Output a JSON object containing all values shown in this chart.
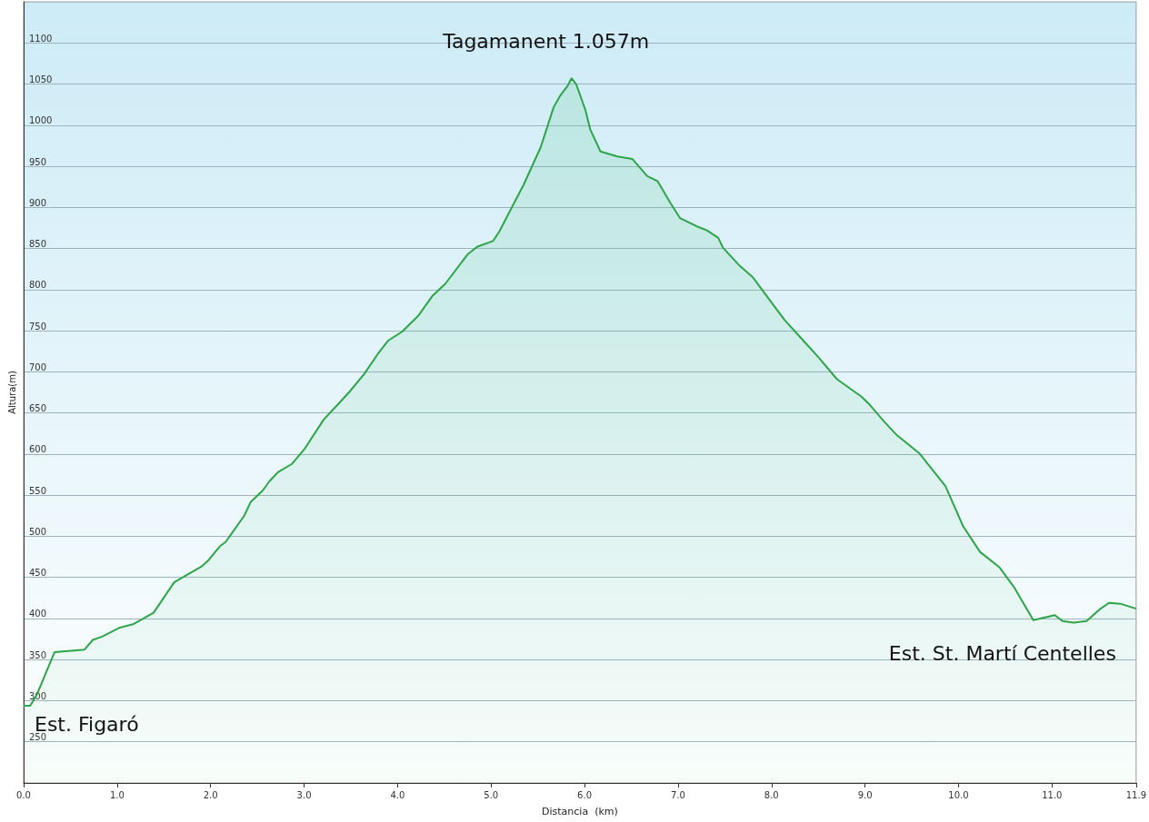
{
  "chart_data": {
    "type": "area",
    "xlabel": "Distancia  (km)",
    "ylabel": "Altura(m)",
    "x": [
      0,
      0.07,
      0.14,
      0.33,
      0.65,
      0.74,
      0.84,
      1.03,
      1.17,
      1.39,
      1.61,
      1.76,
      1.9,
      1.97,
      2.1,
      2.16,
      2.36,
      2.43,
      2.56,
      2.63,
      2.72,
      2.87,
      3.01,
      3.21,
      3.35,
      3.48,
      3.64,
      3.79,
      3.9,
      4.05,
      4.22,
      4.32,
      4.37,
      4.51,
      4.75,
      4.85,
      5.02,
      5.09,
      5.24,
      5.35,
      5.53,
      5.67,
      5.74,
      5.82,
      5.86,
      5.91,
      6.01,
      6.06,
      6.17,
      6.35,
      6.51,
      6.67,
      6.78,
      6.92,
      7.02,
      7.22,
      7.31,
      7.43,
      7.48,
      7.65,
      7.8,
      7.89,
      8.14,
      8.38,
      8.5,
      8.7,
      8.96,
      9.05,
      9.2,
      9.34,
      9.58,
      9.86,
      10.05,
      10.23,
      10.44,
      10.6,
      10.8,
      11.03,
      11.11,
      11.23,
      11.37,
      11.52,
      11.61,
      11.73,
      11.9
    ],
    "series": [
      {
        "color": "#2ea44a",
        "values": [
          294,
          294,
          307,
          359,
          362,
          374,
          378,
          389,
          393,
          407,
          444,
          454,
          463,
          470,
          488,
          493,
          525,
          542,
          556,
          567,
          578,
          588,
          607,
          642,
          659,
          675,
          697,
          722,
          738,
          749,
          768,
          784,
          792,
          807,
          843,
          852,
          859,
          871,
          904,
          928,
          973,
          1022,
          1036,
          1048,
          1057,
          1050,
          1018,
          995,
          968,
          962,
          959,
          938,
          932,
          905,
          887,
          876,
          872,
          863,
          851,
          830,
          815,
          801,
          763,
          733,
          718,
          691,
          670,
          660,
          640,
          623,
          601,
          561,
          512,
          481,
          462,
          437,
          398,
          404,
          397,
          395,
          397,
          412,
          419,
          418,
          412
        ]
      }
    ],
    "xlim": [
      0,
      11.9
    ],
    "xticks": [
      {
        "value": 0,
        "label": "0.0"
      },
      {
        "value": 1,
        "label": "1.0"
      },
      {
        "value": 2,
        "label": "2.0"
      },
      {
        "value": 3,
        "label": "3.0"
      },
      {
        "value": 4,
        "label": "4.0"
      },
      {
        "value": 5,
        "label": "5.0"
      },
      {
        "value": 6,
        "label": "6.0"
      },
      {
        "value": 7,
        "label": "7.0"
      },
      {
        "value": 8,
        "label": "8.0"
      },
      {
        "value": 9,
        "label": "9.0"
      },
      {
        "value": 10,
        "label": "10.0"
      },
      {
        "value": 11,
        "label": "11.0"
      },
      {
        "value": 11.9,
        "label": "11.9"
      }
    ],
    "ylim": [
      200,
      1150
    ],
    "yticks": [
      250,
      300,
      350,
      400,
      450,
      500,
      550,
      600,
      650,
      700,
      750,
      800,
      850,
      900,
      950,
      1000,
      1050,
      1100
    ],
    "grid": "y",
    "marker": "none",
    "line_style": "solid",
    "annotations": [
      {
        "text": "Tagamanent 1.057m",
        "x": 5.86,
        "y": 1057
      },
      {
        "text": "Est. Figaró",
        "x": 0,
        "y": 294
      },
      {
        "text": "Est. St. Martí Centelles",
        "x": 11.9,
        "y": 412
      }
    ]
  }
}
